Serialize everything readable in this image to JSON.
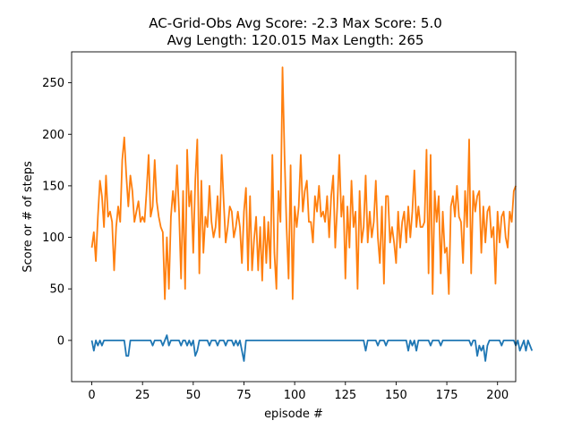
{
  "chart_data": {
    "type": "line",
    "title_line1": "AC-Grid-Obs Avg Score: -2.3 Max Score: 5.0",
    "title_line2": "Avg Length: 120.015 Max Length: 265",
    "xlabel": "episode #",
    "ylabel": "Score or # of steps",
    "xlim": [
      -9.95,
      208.95
    ],
    "ylim": [
      -40,
      280
    ],
    "xticks": [
      0,
      25,
      50,
      75,
      100,
      125,
      150,
      175,
      200
    ],
    "yticks": [
      0,
      50,
      100,
      150,
      200,
      250
    ],
    "grid": false,
    "legend": "none",
    "series": [
      {
        "color": "#1f77b4",
        "values": [
          0,
          -10,
          0,
          -5,
          0,
          -5,
          0,
          0,
          0,
          0,
          0,
          0,
          0,
          0,
          0,
          0,
          0,
          -15,
          -15,
          0,
          0,
          0,
          0,
          0,
          0,
          0,
          0,
          0,
          0,
          0,
          -5,
          0,
          0,
          0,
          0,
          -5,
          0,
          5,
          -5,
          0,
          0,
          0,
          0,
          0,
          -5,
          0,
          0,
          -5,
          0,
          -5,
          0,
          -15,
          -10,
          0,
          0,
          0,
          0,
          0,
          -5,
          0,
          0,
          0,
          -5,
          0,
          0,
          0,
          -5,
          0,
          0,
          0,
          -5,
          0,
          -5,
          0,
          -10,
          -20,
          0,
          0,
          0,
          0,
          0,
          0,
          0,
          0,
          0,
          0,
          0,
          0,
          0,
          0,
          0,
          0,
          0,
          0,
          0,
          0,
          0,
          0,
          0,
          0,
          0,
          0,
          0,
          0,
          0,
          0,
          0,
          0,
          0,
          0,
          0,
          0,
          0,
          0,
          0,
          0,
          0,
          0,
          0,
          0,
          0,
          0,
          0,
          0,
          0,
          0,
          0,
          0,
          0,
          0,
          0,
          0,
          0,
          0,
          0,
          -10,
          0,
          0,
          0,
          0,
          0,
          -5,
          0,
          0,
          0,
          -5,
          0,
          0,
          0,
          0,
          0,
          0,
          0,
          0,
          0,
          0,
          -10,
          0,
          -5,
          0,
          -10,
          0,
          0,
          0,
          0,
          0,
          0,
          -5,
          0,
          0,
          0,
          0,
          -5,
          0,
          0,
          0,
          0,
          0,
          0,
          0,
          0,
          0,
          0,
          0,
          0,
          0,
          0,
          -5,
          0,
          0,
          -15,
          -5,
          -10,
          -5,
          -20,
          -5,
          0,
          0,
          0,
          0,
          0,
          0,
          -5,
          0,
          0,
          0,
          0,
          0,
          0,
          -5,
          0,
          -10,
          -5,
          0,
          -10,
          0,
          -5,
          -10
        ]
      },
      {
        "color": "#ff7f0e",
        "values": [
          90,
          105,
          77,
          120,
          155,
          140,
          110,
          160,
          120,
          125,
          115,
          68,
          110,
          130,
          115,
          175,
          197,
          160,
          130,
          160,
          145,
          115,
          125,
          135,
          115,
          120,
          115,
          145,
          180,
          120,
          130,
          175,
          135,
          120,
          110,
          105,
          40,
          100,
          50,
          120,
          145,
          125,
          170,
          125,
          60,
          145,
          50,
          185,
          130,
          145,
          85,
          155,
          195,
          65,
          155,
          85,
          120,
          110,
          150,
          115,
          100,
          110,
          140,
          100,
          180,
          135,
          95,
          110,
          130,
          125,
          100,
          110,
          125,
          110,
          75,
          125,
          148,
          68,
          140,
          68,
          98,
          120,
          68,
          110,
          58,
          120,
          75,
          115,
          70,
          180,
          85,
          50,
          145,
          115,
          265,
          180,
          110,
          60,
          170,
          40,
          130,
          110,
          130,
          180,
          125,
          145,
          155,
          115,
          115,
          95,
          140,
          125,
          150,
          120,
          125,
          115,
          140,
          100,
          140,
          160,
          90,
          130,
          180,
          120,
          140,
          60,
          130,
          90,
          155,
          110,
          125,
          50,
          145,
          95,
          110,
          160,
          95,
          125,
          100,
          115,
          155,
          100,
          75,
          130,
          55,
          140,
          140,
          95,
          110,
          95,
          75,
          125,
          90,
          115,
          125,
          95,
          130,
          100,
          125,
          165,
          110,
          130,
          110,
          110,
          115,
          185,
          65,
          180,
          45,
          145,
          115,
          140,
          65,
          125,
          85,
          90,
          45,
          130,
          140,
          120,
          150,
          120,
          115,
          75,
          145,
          110,
          195,
          65,
          145,
          125,
          140,
          145,
          85,
          130,
          95,
          125,
          130,
          100,
          110,
          55,
          125,
          95,
          120,
          125,
          100,
          90,
          125,
          115,
          145,
          150
        ]
      }
    ]
  }
}
